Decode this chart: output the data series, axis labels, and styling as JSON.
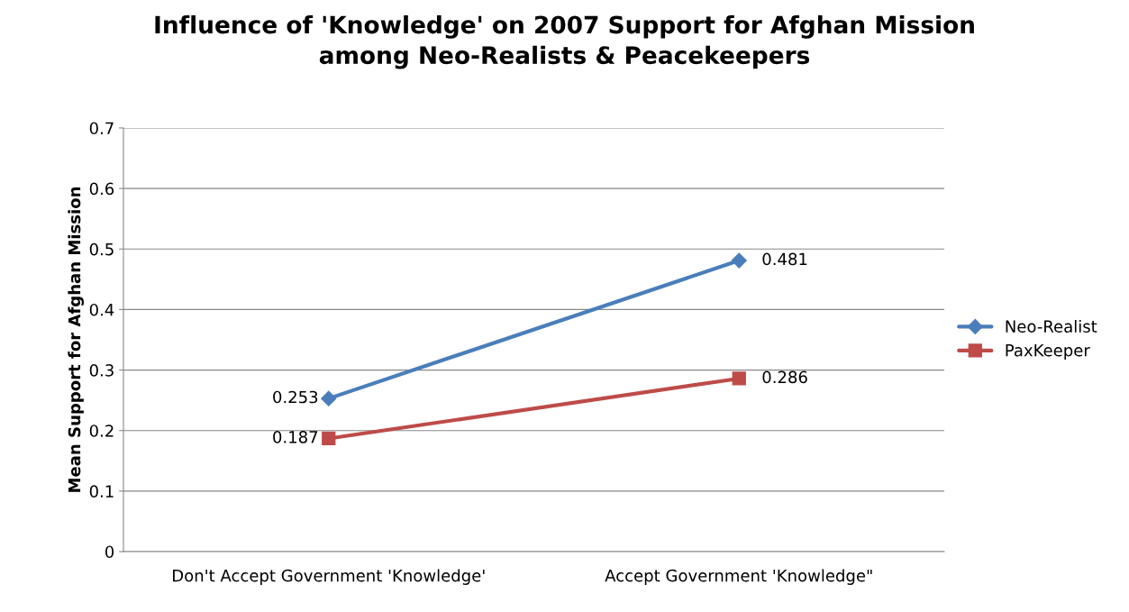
{
  "chart_data": {
    "type": "line",
    "title": "Influence of 'Knowledge' on 2007 Support for Afghan Mission\namong Neo-Realists & Peacekeepers",
    "ylabel": "Mean Support for Afghan Mission",
    "categories": [
      "Don't Accept Government 'Knowledge'",
      "Accept Government 'Knowledge\""
    ],
    "series": [
      {
        "name": "Neo-Realist",
        "color": "#4a7ebb",
        "marker": "diamond",
        "values": [
          0.253,
          0.481
        ]
      },
      {
        "name": "PaxKeeper",
        "color": "#be4b48",
        "marker": "square",
        "values": [
          0.187,
          0.286
        ]
      }
    ],
    "ylim": [
      0,
      0.7
    ],
    "yticks": [
      0,
      0.1,
      0.2,
      0.3,
      0.4,
      0.5,
      0.6,
      0.7
    ],
    "grid": "y",
    "legend": "right",
    "data_labels": true,
    "line_style": "solid"
  }
}
